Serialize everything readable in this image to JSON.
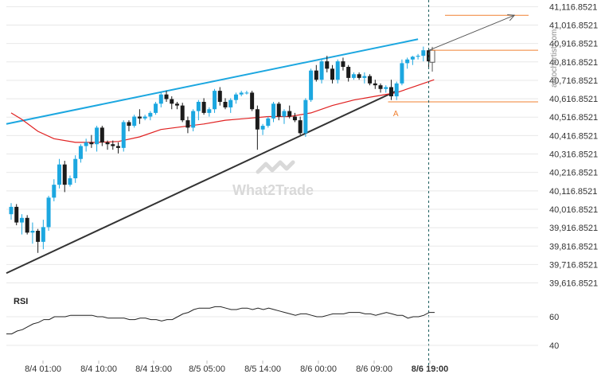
{
  "watermark": "What2Trade",
  "source": "autochartist.com",
  "chart_data": [
    {
      "type": "candlestick",
      "title": "",
      "price_ticks": [
        "41,116.8521",
        "41,016.8521",
        "40,916.8521",
        "40,816.8521",
        "40,716.8521",
        "40,616.8521",
        "40,516.8521",
        "40,416.8521",
        "40,316.8521",
        "40,216.8521",
        "40,116.8521",
        "40,016.8521",
        "39,916.8521",
        "39,816.8521",
        "39,716.8521",
        "39,616.8521"
      ],
      "ylim": [
        39576,
        41140
      ],
      "time_ticks": [
        "8/4 01:00",
        "8/4 10:00",
        "8/4 19:00",
        "8/5 05:00",
        "8/5 14:00",
        "8/6 00:00",
        "8/6 09:00",
        "8/6 19:00"
      ],
      "current_time_label": "8/6 19:00",
      "candle_count": 79,
      "candles": [
        [
          39990,
          40050,
          39960,
          40030
        ],
        [
          40030,
          40045,
          39930,
          39945
        ],
        [
          39945,
          39990,
          39880,
          39970
        ],
        [
          39970,
          39985,
          39880,
          39890
        ],
        [
          39890,
          39945,
          39830,
          39900
        ],
        [
          39900,
          39910,
          39780,
          39840
        ],
        [
          39840,
          39960,
          39800,
          39920
        ],
        [
          39920,
          40090,
          39900,
          40080
        ],
        [
          40080,
          40180,
          40060,
          40150
        ],
        [
          40150,
          40290,
          40130,
          40260
        ],
        [
          40260,
          40280,
          40110,
          40150
        ],
        [
          40150,
          40200,
          40140,
          40185
        ],
        [
          40185,
          40310,
          40160,
          40290
        ],
        [
          40290,
          40370,
          40270,
          40360
        ],
        [
          40360,
          40400,
          40330,
          40380
        ],
        [
          40380,
          40420,
          40350,
          40370
        ],
        [
          40370,
          40470,
          40330,
          40460
        ],
        [
          40460,
          40470,
          40360,
          40380
        ],
        [
          40380,
          40390,
          40340,
          40370
        ],
        [
          40370,
          40390,
          40340,
          40360
        ],
        [
          40360,
          40380,
          40320,
          40350
        ],
        [
          40350,
          40500,
          40330,
          40490
        ],
        [
          40490,
          40500,
          40440,
          40470
        ],
        [
          40470,
          40530,
          40460,
          40520
        ],
        [
          40520,
          40560,
          40480,
          40510
        ],
        [
          40510,
          40530,
          40500,
          40520
        ],
        [
          40520,
          40550,
          40500,
          40540
        ],
        [
          40540,
          40600,
          40530,
          40590
        ],
        [
          40590,
          40650,
          40570,
          40640
        ],
        [
          40640,
          40660,
          40600,
          40615
        ],
        [
          40615,
          40630,
          40560,
          40590
        ],
        [
          40590,
          40600,
          40560,
          40580
        ],
        [
          40580,
          40595,
          40490,
          40500
        ],
        [
          40500,
          40520,
          40430,
          40460
        ],
        [
          40460,
          40560,
          40440,
          40550
        ],
        [
          40550,
          40610,
          40500,
          40600
        ],
        [
          40600,
          40620,
          40530,
          40540
        ],
        [
          40540,
          40570,
          40520,
          40560
        ],
        [
          40560,
          40670,
          40540,
          40660
        ],
        [
          40660,
          40680,
          40580,
          40600
        ],
        [
          40600,
          40620,
          40560,
          40570
        ],
        [
          40570,
          40620,
          40540,
          40610
        ],
        [
          40610,
          40650,
          40590,
          40640
        ],
        [
          40640,
          40660,
          40630,
          40650
        ],
        [
          40650,
          40660,
          40640,
          40650
        ],
        [
          40650,
          40660,
          40550,
          40560
        ],
        [
          40560,
          40580,
          40340,
          40450
        ],
        [
          40450,
          40480,
          40420,
          40470
        ],
        [
          40470,
          40520,
          40460,
          40510
        ],
        [
          40510,
          40600,
          40490,
          40590
        ],
        [
          40590,
          40600,
          40500,
          40520
        ],
        [
          40520,
          40560,
          40480,
          40550
        ],
        [
          40550,
          40580,
          40510,
          40520
        ],
        [
          40520,
          40540,
          40490,
          40500
        ],
        [
          40500,
          40520,
          40420,
          40430
        ],
        [
          40430,
          40620,
          40410,
          40610
        ],
        [
          40610,
          40780,
          40600,
          40770
        ],
        [
          40770,
          40800,
          40710,
          40720
        ],
        [
          40720,
          40830,
          40700,
          40820
        ],
        [
          40820,
          40850,
          40760,
          40780
        ],
        [
          40780,
          40800,
          40700,
          40720
        ],
        [
          40720,
          40830,
          40700,
          40820
        ],
        [
          40820,
          40840,
          40770,
          40790
        ],
        [
          40790,
          40800,
          40710,
          40730
        ],
        [
          40730,
          40760,
          40720,
          40750
        ],
        [
          40750,
          40760,
          40720,
          40730
        ],
        [
          40730,
          40760,
          40700,
          40740
        ],
        [
          40740,
          40750,
          40690,
          40700
        ],
        [
          40700,
          40720,
          40670,
          40690
        ],
        [
          40690,
          40700,
          40650,
          40670
        ],
        [
          40670,
          40690,
          40650,
          40680
        ],
        [
          40680,
          40720,
          40610,
          40630
        ],
        [
          40630,
          40710,
          40610,
          40700
        ],
        [
          40700,
          40830,
          40690,
          40810
        ],
        [
          40810,
          40840,
          40780,
          40830
        ],
        [
          40830,
          40850,
          40800,
          40845
        ],
        [
          40845,
          40860,
          40830,
          40850
        ],
        [
          40850,
          40900,
          40820,
          40880
        ],
        [
          40880,
          40890,
          40790,
          40820
        ]
      ],
      "moving_average": [
        [
          0,
          40540
        ],
        [
          2,
          40505
        ],
        [
          5,
          40440
        ],
        [
          8,
          40400
        ],
        [
          12,
          40380
        ],
        [
          16,
          40380
        ],
        [
          20,
          40385
        ],
        [
          24,
          40410
        ],
        [
          28,
          40450
        ],
        [
          32,
          40465
        ],
        [
          36,
          40480
        ],
        [
          40,
          40500
        ],
        [
          44,
          40510
        ],
        [
          48,
          40520
        ],
        [
          52,
          40520
        ],
        [
          56,
          40540
        ],
        [
          60,
          40580
        ],
        [
          64,
          40610
        ],
        [
          68,
          40630
        ],
        [
          72,
          40650
        ],
        [
          76,
          40690
        ],
        [
          79,
          40720
        ]
      ],
      "upper_trendline": [
        [
          0,
          40480
        ],
        [
          76,
          40940
        ]
      ],
      "lower_trendline": [
        [
          0,
          39670
        ],
        [
          72,
          40660
        ]
      ],
      "breakout_marker": {
        "label": "A",
        "index": 72,
        "price": 40540
      },
      "support_level": {
        "price": 40600,
        "from_index": 71
      },
      "resistance_level": {
        "price": 40880,
        "from_index": 78
      },
      "target_level": {
        "price": 41070,
        "from_index": 80
      },
      "projection_arrow": [
        [
          77,
          40880
        ],
        [
          94,
          41070
        ]
      ],
      "colors": {
        "up": "#1ca7e0",
        "down": "#1b1b1b",
        "moving_average": "#e02020",
        "upper_trendline": "#1ca7e0",
        "lower_trendline": "#333333",
        "levels": "#f08030",
        "grid": "#e8e8e8"
      }
    },
    {
      "type": "line",
      "title": "RSI",
      "ylim": [
        30,
        70
      ],
      "ticks": [
        60,
        40
      ],
      "values": [
        48,
        48,
        50,
        51,
        53,
        55,
        56,
        58,
        58,
        60,
        60,
        60,
        61,
        61,
        61,
        61,
        61,
        60,
        60,
        59,
        59,
        59,
        59,
        58,
        58,
        59,
        59,
        58,
        58,
        57,
        58,
        58,
        60,
        62,
        63,
        65,
        66,
        66,
        66,
        67,
        67,
        66,
        65,
        65,
        66,
        66,
        65,
        66,
        65,
        66,
        65,
        64,
        63,
        62,
        61,
        62,
        62,
        61,
        60,
        60,
        61,
        62,
        62,
        62,
        63,
        63,
        63,
        62,
        62,
        61,
        62,
        63,
        62,
        61,
        61,
        59,
        60,
        60,
        61,
        63,
        63
      ]
    }
  ]
}
